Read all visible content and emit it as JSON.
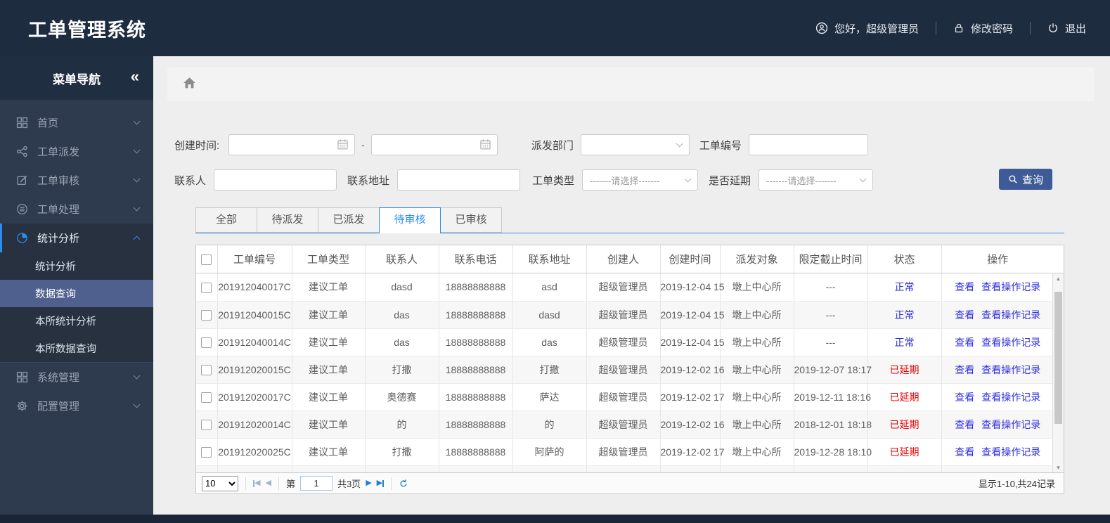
{
  "app": {
    "title": "工单管理系统"
  },
  "header": {
    "greeting": "您好，超级管理员",
    "change_password": "修改密码",
    "logout": "退出"
  },
  "sidebar": {
    "title": "菜单导航",
    "collapse_icon": "«",
    "items": [
      {
        "label": "首页",
        "icon": "grid-icon",
        "expanded": false
      },
      {
        "label": "工单派发",
        "icon": "share-icon",
        "expanded": false
      },
      {
        "label": "工单审核",
        "icon": "edit-icon",
        "expanded": false
      },
      {
        "label": "工单处理",
        "icon": "process-icon",
        "expanded": false
      },
      {
        "label": "统计分析",
        "icon": "pie-chart-icon",
        "expanded": true,
        "children": [
          "统计分析",
          "数据查询",
          "本所统计分析",
          "本所数据查询"
        ],
        "active_child": "数据查询"
      },
      {
        "label": "系统管理",
        "icon": "grid-icon",
        "expanded": false
      },
      {
        "label": "配置管理",
        "icon": "gear-icon",
        "expanded": false
      }
    ]
  },
  "filters": {
    "create_time_label": "创建时间:",
    "range_separator": "-",
    "dispatch_dept_label": "派发部门",
    "order_no_label": "工单编号",
    "contact_label": "联系人",
    "address_label": "联系地址",
    "order_type_label": "工单类型",
    "order_type_value": "-------请选择-------",
    "delay_label": "是否延期",
    "delay_value": "-------请选择-------",
    "search_button": "查询"
  },
  "tabs": [
    {
      "label": "全部",
      "active": false
    },
    {
      "label": "待派发",
      "active": false
    },
    {
      "label": "已派发",
      "active": false
    },
    {
      "label": "待审核",
      "active": true
    },
    {
      "label": "已审核",
      "active": false
    }
  ],
  "table": {
    "headers": [
      "工单编号",
      "工单类型",
      "联系人",
      "联系电话",
      "联系地址",
      "创建人",
      "创建时间",
      "派发对象",
      "限定截止时间",
      "状态",
      "操作"
    ],
    "actions": {
      "view": "查看",
      "view_log": "查看操作记录"
    },
    "rows": [
      {
        "order_no": "201912040017C",
        "type": "建议工单",
        "contact": "dasd",
        "phone": "18888888888",
        "address": "asd",
        "creator": "超级管理员",
        "created": "2019-12-04 15",
        "target": "墩上中心所",
        "deadline": "---",
        "status": "正常",
        "status_type": "normal"
      },
      {
        "order_no": "201912040015C",
        "type": "建议工单",
        "contact": "das",
        "phone": "18888888888",
        "address": "dasd",
        "creator": "超级管理员",
        "created": "2019-12-04 15",
        "target": "墩上中心所",
        "deadline": "---",
        "status": "正常",
        "status_type": "normal"
      },
      {
        "order_no": "201912040014C",
        "type": "建议工单",
        "contact": "das",
        "phone": "18888888888",
        "address": "das",
        "creator": "超级管理员",
        "created": "2019-12-04 15",
        "target": "墩上中心所",
        "deadline": "---",
        "status": "正常",
        "status_type": "normal"
      },
      {
        "order_no": "201912020015C",
        "type": "建议工单",
        "contact": "打撒",
        "phone": "18888888888",
        "address": "打撒",
        "creator": "超级管理员",
        "created": "2019-12-02 16",
        "target": "墩上中心所",
        "deadline": "2019-12-07 18:17",
        "status": "已延期",
        "status_type": "delayed"
      },
      {
        "order_no": "201912020017C",
        "type": "建议工单",
        "contact": "奥德赛",
        "phone": "18888888888",
        "address": "萨达",
        "creator": "超级管理员",
        "created": "2019-12-02 17",
        "target": "墩上中心所",
        "deadline": "2019-12-11 18:16",
        "status": "已延期",
        "status_type": "delayed"
      },
      {
        "order_no": "201912020014C",
        "type": "建议工单",
        "contact": "的",
        "phone": "18888888888",
        "address": "的",
        "creator": "超级管理员",
        "created": "2019-12-02 16",
        "target": "墩上中心所",
        "deadline": "2018-12-01 18:18",
        "status": "已延期",
        "status_type": "delayed"
      },
      {
        "order_no": "201912020025C",
        "type": "建议工单",
        "contact": "打撒",
        "phone": "18888888888",
        "address": "阿萨的",
        "creator": "超级管理员",
        "created": "2019-12-02 17",
        "target": "墩上中心所",
        "deadline": "2019-12-28 18:10",
        "status": "已延期",
        "status_type": "delayed"
      }
    ]
  },
  "pagination": {
    "page_size": "10",
    "page_prefix": "第",
    "current_page": "1",
    "total_pages": "共3页",
    "summary": "显示1-10,共24记录"
  },
  "colors": {
    "header_bg": "#1e2c40",
    "sidebar_bg": "#2e3b4e",
    "sidebar_selected": "#50608e",
    "accent_blue": "#2d8cf0",
    "button_blue": "#3f5b97",
    "link_blue": "#3131dd",
    "status_normal": "#2a2fd4",
    "status_delayed": "#e60000",
    "content_bg": "#eeeeee"
  }
}
